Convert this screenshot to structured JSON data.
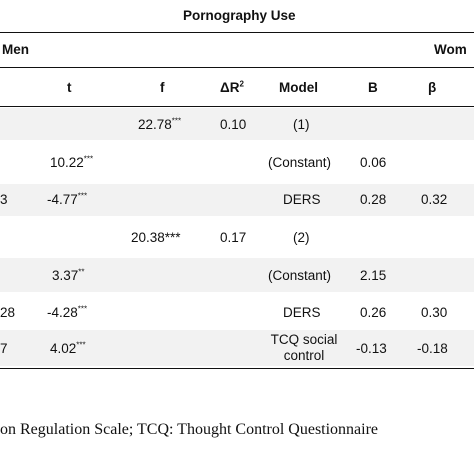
{
  "header": {
    "title": "Pornography Use",
    "men": "Men",
    "women": "Wom",
    "cols": {
      "t": "t",
      "f": "f",
      "dr2": "ΔR",
      "dr2_sup": "2",
      "model": "Model",
      "b": "B",
      "beta": "β"
    }
  },
  "rows": [
    {
      "left": "",
      "t": "",
      "t_sig": "",
      "f": "22.78",
      "f_sig": "***",
      "dr2": "0.10",
      "model": "(1)",
      "b": "",
      "beta": ""
    },
    {
      "left": "",
      "t": "10.22",
      "t_sig": "***",
      "f": "",
      "f_sig": "",
      "dr2": "",
      "model": "(Constant)",
      "b": "0.06",
      "beta": ""
    },
    {
      "left": "3",
      "t": "-4.77",
      "t_sig": "***",
      "f": "",
      "f_sig": "",
      "dr2": "",
      "model": "DERS",
      "b": "0.28",
      "beta": "0.32"
    },
    {
      "left": "",
      "t": "",
      "t_sig": "",
      "f": "20.38***",
      "f_sig": "",
      "dr2": "0.17",
      "model": "(2)",
      "b": "",
      "beta": ""
    },
    {
      "left": "",
      "t": "3.37",
      "t_sig": "**",
      "f": "",
      "f_sig": "",
      "dr2": "",
      "model": "(Constant)",
      "b": "2.15",
      "beta": ""
    },
    {
      "left": "28",
      "t": "-4.28",
      "t_sig": "***",
      "f": "",
      "f_sig": "",
      "dr2": "",
      "model": "DERS",
      "b": "0.26",
      "beta": "0.30"
    },
    {
      "left": "7",
      "t": "4.02",
      "t_sig": "***",
      "f": "",
      "f_sig": "",
      "dr2": "",
      "model": "TCQ social",
      "model2": "control",
      "b": "-0.13",
      "beta": "-0.18"
    }
  ],
  "note": "on Regulation Scale; TCQ: Thought Control Questionnaire"
}
